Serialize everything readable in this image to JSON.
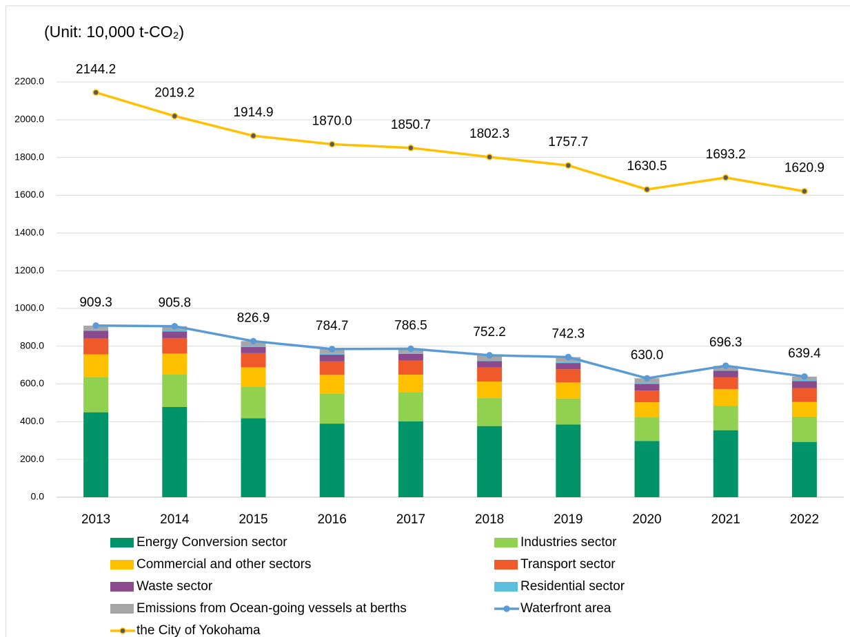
{
  "chart_data": {
    "type": "bar",
    "stacked": true,
    "title": "(Unit: 10,000 t-CO₂)",
    "categories": [
      "2013",
      "2014",
      "2015",
      "2016",
      "2017",
      "2018",
      "2019",
      "2020",
      "2021",
      "2022"
    ],
    "series": [
      {
        "name": "Energy Conversion sector",
        "type": "bar",
        "color": "#009468",
        "values": [
          450,
          478,
          418,
          390,
          402,
          377,
          385,
          298,
          355,
          293
        ]
      },
      {
        "name": "Industries sector",
        "type": "bar",
        "color": "#92d050",
        "values": [
          185,
          173,
          168,
          160,
          155,
          148,
          138,
          125,
          130,
          132
        ]
      },
      {
        "name": "Commercial and other sectors",
        "type": "bar",
        "color": "#ffc000",
        "values": [
          122,
          110,
          102,
          98,
          92,
          88,
          85,
          80,
          88,
          80
        ]
      },
      {
        "name": "Transport sector",
        "type": "bar",
        "color": "#f05a2a",
        "values": [
          83,
          82,
          75,
          72,
          75,
          75,
          70,
          62,
          62,
          72
        ]
      },
      {
        "name": "Waste sector",
        "type": "bar",
        "color": "#8b4a8b",
        "values": [
          42,
          35,
          33,
          35,
          35,
          33,
          33,
          35,
          35,
          38
        ]
      },
      {
        "name": "Residential sector",
        "type": "bar",
        "color": "#5bc0de",
        "values": [
          5,
          5,
          5,
          5,
          5,
          5,
          5,
          5,
          5,
          5
        ]
      },
      {
        "name": "Emissions from Ocean-going vessels at berths",
        "type": "bar",
        "color": "#a6a6a6",
        "values": [
          22,
          23,
          26,
          25,
          22,
          26,
          26,
          25,
          21,
          19
        ]
      },
      {
        "name": "Waterfront area",
        "type": "line",
        "color": "#5b9bd5",
        "marker_color": "#5b9bd5",
        "values": [
          909.3,
          905.8,
          826.9,
          784.7,
          786.5,
          752.2,
          742.3,
          630.0,
          696.3,
          639.4
        ],
        "value_labels": [
          "909.3",
          "905.8",
          "826.9",
          "784.7",
          "786.5",
          "752.2",
          "742.3",
          "630.0",
          "696.3",
          "639.4"
        ]
      },
      {
        "name": "the City of Yokohama",
        "type": "line",
        "color": "#ffc000",
        "marker_color": "#595959",
        "values": [
          2144.2,
          2019.2,
          1914.9,
          1870.0,
          1850.7,
          1802.3,
          1757.7,
          1630.5,
          1693.2,
          1620.9
        ],
        "value_labels": [
          "2144.2",
          "2019.2",
          "1914.9",
          "1870.0",
          "1850.7",
          "1802.3",
          "1757.7",
          "1630.5",
          "1693.2",
          "1620.9"
        ]
      }
    ],
    "ylim": [
      0,
      2200
    ],
    "yticks": [
      {
        "value": 0,
        "label": "0.0"
      },
      {
        "value": 200,
        "label": "200.0"
      },
      {
        "value": 400,
        "label": "400.0"
      },
      {
        "value": 600,
        "label": "600.0"
      },
      {
        "value": 800,
        "label": "800.0"
      },
      {
        "value": 1000,
        "label": "1000.0"
      },
      {
        "value": 1200,
        "label": "1200.0"
      },
      {
        "value": 1400,
        "label": "1400.0"
      },
      {
        "value": 1600,
        "label": "1600.0"
      },
      {
        "value": 1800,
        "label": "1800.0"
      },
      {
        "value": 2000,
        "label": "2000.0"
      },
      {
        "value": 2200,
        "label": "2200.0"
      }
    ],
    "grid": true
  }
}
